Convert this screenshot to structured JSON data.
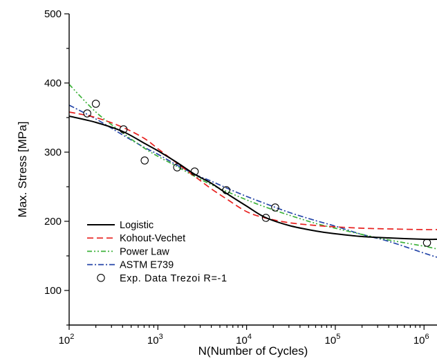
{
  "chart_data": {
    "type": "line",
    "title": "",
    "xlabel": "N(Number of Cycles)",
    "ylabel": "Max. Stress [MPa]",
    "xscale": "log",
    "xlim": [
      100,
      1400000
    ],
    "ylim": [
      50,
      500
    ],
    "grid": false,
    "legend_position": "bottom-left",
    "x_ticks": [
      {
        "value": 100,
        "base": "10",
        "exp": "2"
      },
      {
        "value": 1000,
        "base": "10",
        "exp": "3"
      },
      {
        "value": 10000,
        "base": "10",
        "exp": "4"
      },
      {
        "value": 100000,
        "base": "10",
        "exp": "5"
      },
      {
        "value": 1000000,
        "base": "10",
        "exp": "6"
      }
    ],
    "y_ticks": [
      {
        "value": 100,
        "label": "100"
      },
      {
        "value": 200,
        "label": "200"
      },
      {
        "value": 300,
        "label": "300"
      },
      {
        "value": 400,
        "label": "400"
      },
      {
        "value": 500,
        "label": "500"
      }
    ],
    "series": [
      {
        "name": "Logistic",
        "color": "#000000",
        "dash": "solid",
        "x": [
          100,
          200,
          400,
          700,
          1000,
          1600,
          2600,
          4000,
          6000,
          10000,
          16000,
          30000,
          60000,
          100000,
          200000,
          400000,
          1000000,
          1400000
        ],
        "y": [
          352,
          343,
          330,
          313,
          302,
          286,
          268,
          255,
          240,
          222,
          206,
          194,
          186,
          182,
          178,
          176,
          174,
          174
        ]
      },
      {
        "name": "Kohout-Vechet",
        "color": "#e8201e",
        "dash": "9,5",
        "x": [
          100,
          200,
          400,
          700,
          1000,
          1600,
          2600,
          4000,
          6000,
          10000,
          16000,
          30000,
          60000,
          100000,
          200000,
          400000,
          1000000,
          1400000
        ],
        "y": [
          358,
          350,
          336,
          320,
          305,
          285,
          265,
          247,
          232,
          214,
          205,
          198,
          194,
          192,
          190,
          189,
          188,
          188
        ]
      },
      {
        "name": "Power Law",
        "color": "#3db23a",
        "dash": "7,3,2,3,2,3",
        "x": [
          100,
          200,
          400,
          700,
          1000,
          1600,
          2600,
          4000,
          6000,
          10000,
          16000,
          30000,
          60000,
          100000,
          200000,
          400000,
          1000000,
          1400000
        ],
        "y": [
          398,
          358,
          328,
          306,
          294,
          280,
          265,
          253,
          243,
          231,
          221,
          209,
          197,
          190,
          181,
          173,
          164,
          160
        ]
      },
      {
        "name": "ASTM E739",
        "color": "#2445a8",
        "dash": "8,3,2,3",
        "x": [
          100,
          200,
          400,
          700,
          1000,
          1600,
          2600,
          4000,
          6000,
          10000,
          16000,
          30000,
          60000,
          100000,
          200000,
          400000,
          1000000,
          1400000
        ],
        "y": [
          368,
          348,
          325,
          307,
          297,
          282,
          268,
          258,
          248,
          236,
          226,
          213,
          201,
          193,
          181,
          171,
          154,
          148
        ]
      }
    ],
    "scatter": {
      "name": "Exp. Data Trezoi R=-1",
      "marker": "open-circle",
      "points": [
        {
          "x": 160,
          "y": 356
        },
        {
          "x": 200,
          "y": 370
        },
        {
          "x": 410,
          "y": 333
        },
        {
          "x": 710,
          "y": 288
        },
        {
          "x": 1650,
          "y": 278
        },
        {
          "x": 2600,
          "y": 272
        },
        {
          "x": 5900,
          "y": 245
        },
        {
          "x": 16500,
          "y": 205
        },
        {
          "x": 21000,
          "y": 220
        },
        {
          "x": 1080000,
          "y": 169
        }
      ]
    }
  }
}
